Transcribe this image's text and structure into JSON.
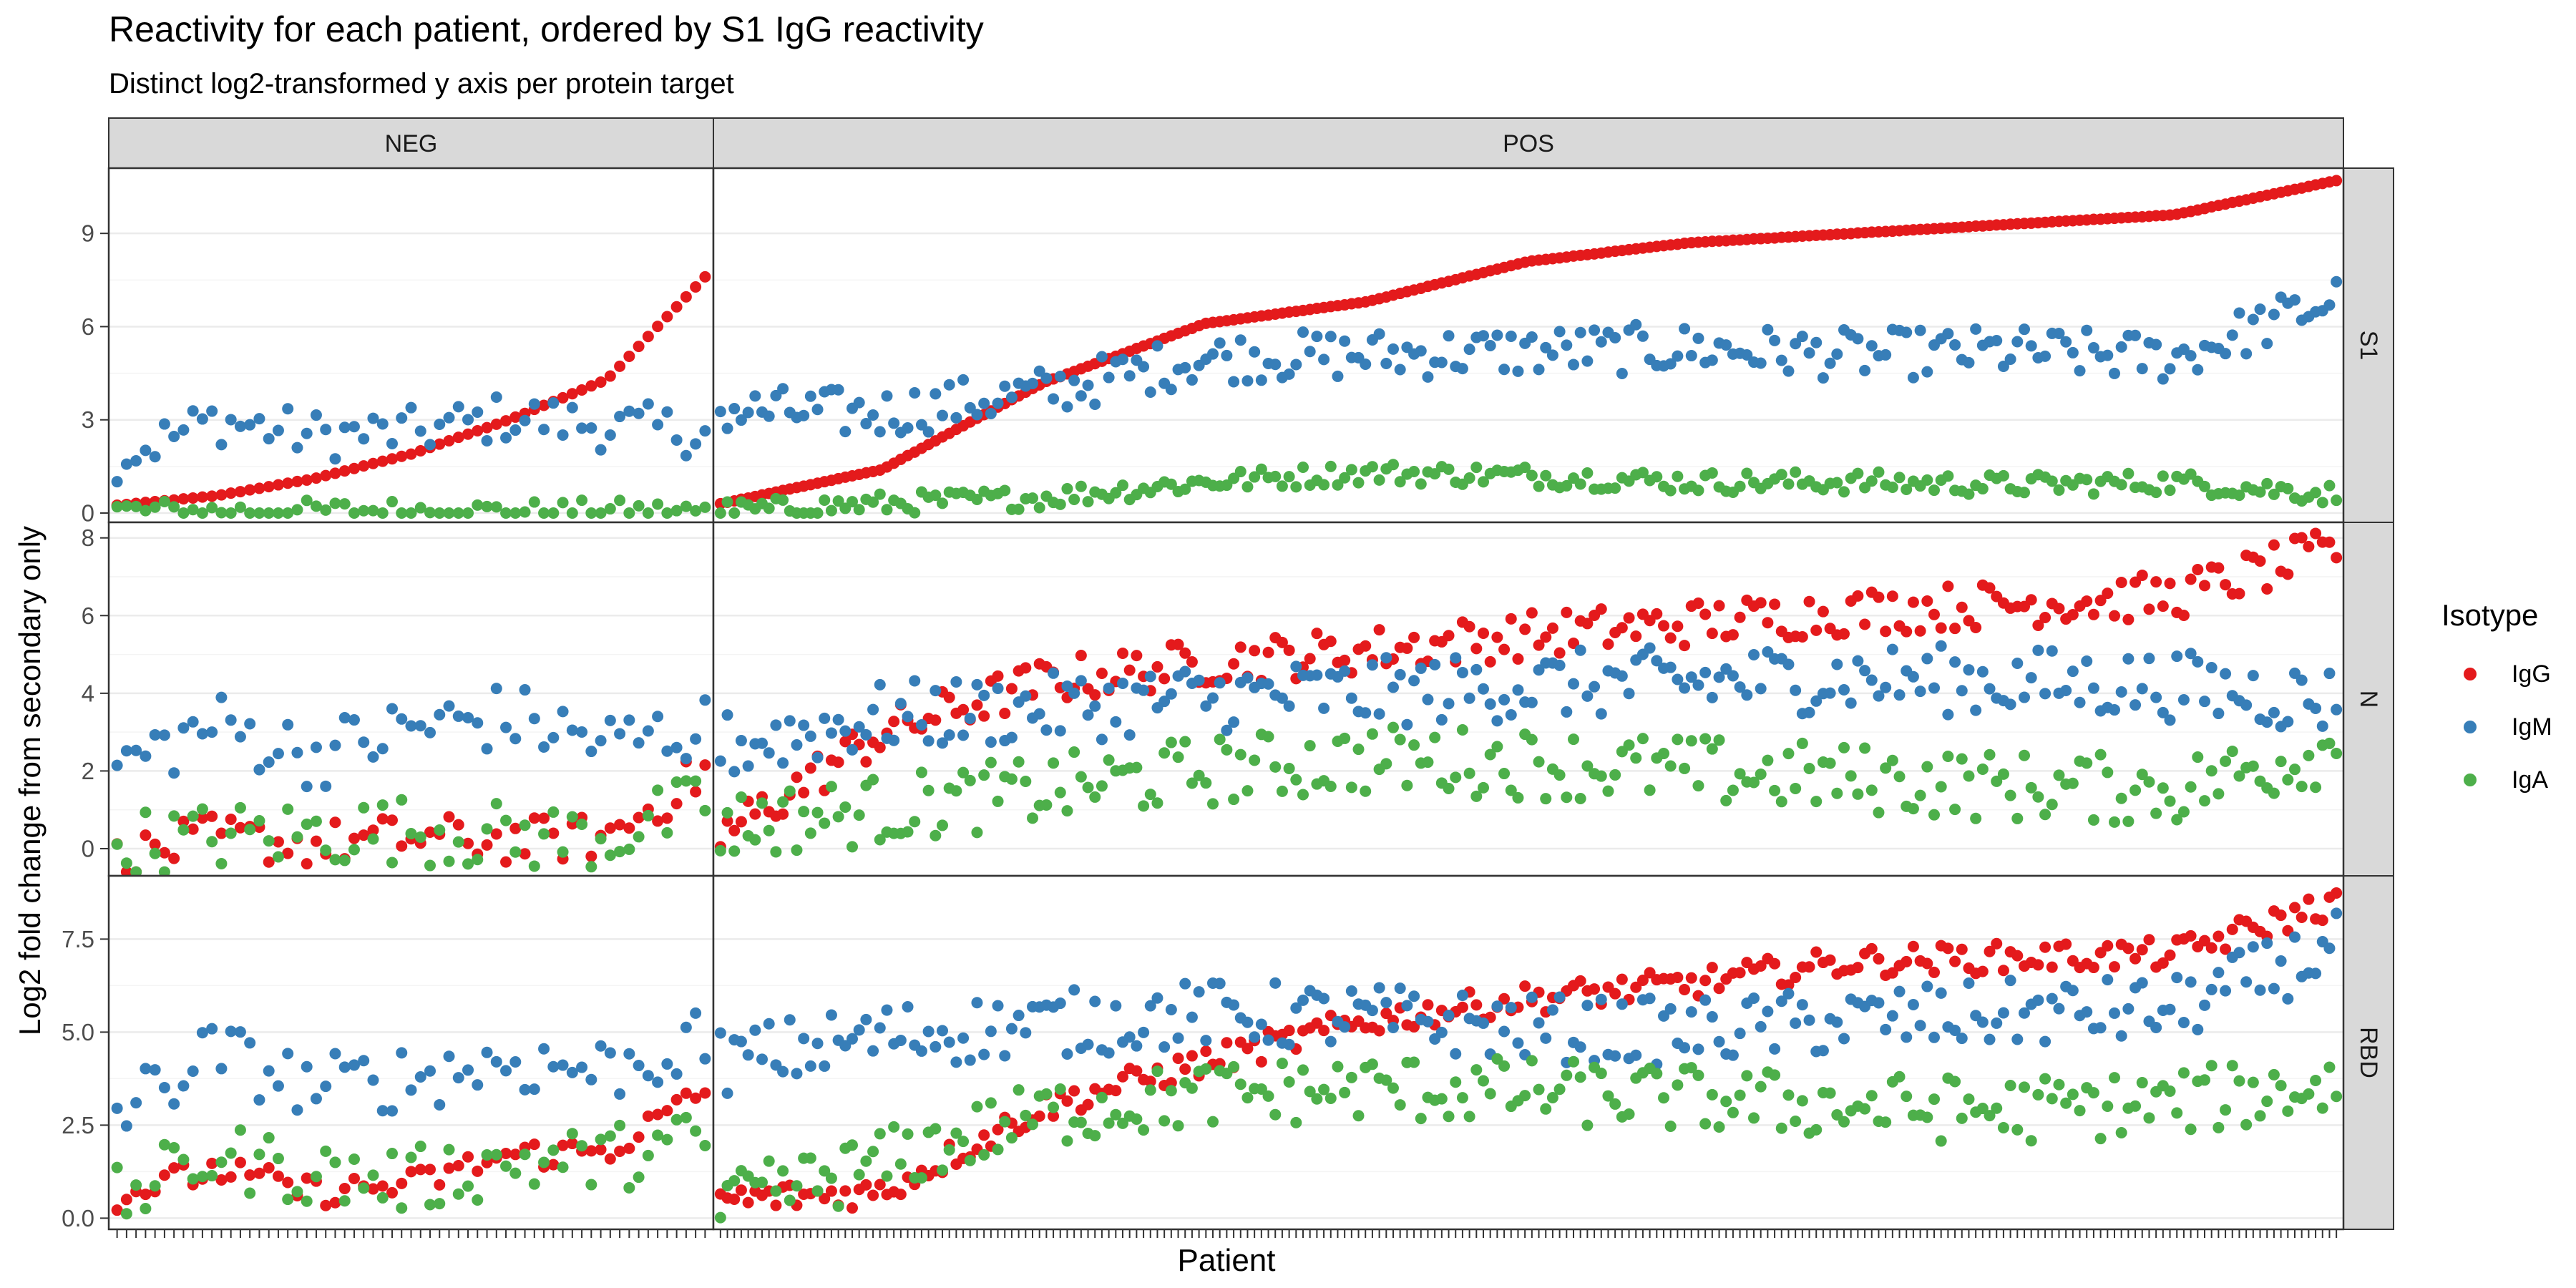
{
  "chart_data": {
    "type": "scatter",
    "title": "Reactivity for each patient, ordered by S1 IgG reactivity",
    "subtitle": "Distinct log2-transformed y axis per protein target",
    "xlabel": "Patient",
    "ylabel": "Log2 fold change from secondary only",
    "legend": {
      "title": "Isotype",
      "position": "right",
      "items": [
        {
          "name": "IgG",
          "color": "#e41a1c"
        },
        {
          "name": "IgM",
          "color": "#377eb8"
        },
        {
          "name": "IgA",
          "color": "#4daf4a"
        }
      ]
    },
    "columns": [
      {
        "label": "NEG",
        "n_patients": 63
      },
      {
        "label": "POS",
        "n_patients": 234
      }
    ],
    "rows": [
      {
        "label": "S1",
        "ylim": [
          -0.3,
          11.1
        ],
        "yticks": [
          0,
          3,
          6,
          9
        ],
        "ytick_labels": [
          "0",
          "3",
          "6",
          "9"
        ]
      },
      {
        "label": "N",
        "ylim": [
          -0.7,
          8.4
        ],
        "yticks": [
          0,
          2,
          4,
          6,
          8
        ],
        "ytick_labels": [
          "0",
          "2",
          "4",
          "6",
          "8"
        ]
      },
      {
        "label": "RBD",
        "ylim": [
          -0.3,
          9.2
        ],
        "yticks": [
          0,
          2.5,
          5,
          7.5
        ],
        "ytick_labels": [
          "0.0",
          "2.5",
          "5.0",
          "7.5"
        ]
      }
    ],
    "grid": true,
    "series": [
      {
        "name": "IgG",
        "color": "#e41a1c",
        "panels": {
          "NEG": {
            "S1": [
              0.25,
              0.55,
              1.1,
              1.9,
              3.0,
              4.3,
              7.6
            ],
            "N": [
              -0.3,
              0.3,
              0.1,
              0.3,
              0.2,
              0.3,
              2.0
            ],
            "RBD": [
              0.6,
              1.3,
              0.7,
              0.9,
              1.7,
              1.8,
              3.4
            ]
          },
          "POS": {
            "S1": [
              0.3,
              1.4,
              4.2,
              6.1,
              6.8,
              8.1,
              8.7,
              9.0,
              9.3,
              9.6,
              10.7
            ],
            "N": [
              0.3,
              3.0,
              4.3,
              4.8,
              5.1,
              5.5,
              5.8,
              6.1,
              6.3,
              6.5,
              7.7
            ],
            "RBD": [
              0.5,
              0.7,
              3.0,
              4.2,
              5.3,
              5.9,
              6.3,
              6.9,
              7.0,
              7.1,
              8.5
            ]
          }
        }
      },
      {
        "name": "IgM",
        "color": "#377eb8",
        "panels": {
          "NEG": {
            "S1": [
              1.8,
              3.0,
              2.5,
              2.6,
              3.1,
              2.8,
              2.6
            ],
            "N": [
              2.1,
              3.2,
              2.4,
              3.1,
              3.4,
              2.7,
              3.1
            ],
            "RBD": [
              2.8,
              4.5,
              3.5,
              3.8,
              4.2,
              4.0,
              4.7
            ]
          },
          "POS": {
            "S1": [
              3.3,
              3.2,
              3.9,
              5.0,
              5.1,
              5.2,
              5.3,
              5.1,
              5.2,
              5.0,
              6.9
            ],
            "N": [
              2.6,
              3.4,
              3.6,
              3.9,
              4.0,
              4.2,
              4.3,
              4.4,
              4.3,
              4.2,
              3.8
            ],
            "RBD": [
              4.2,
              4.9,
              5.2,
              5.5,
              5.4,
              5.1,
              5.0,
              5.3,
              5.5,
              5.6,
              7.3
            ]
          }
        }
      },
      {
        "name": "IgA",
        "color": "#4daf4a",
        "panels": {
          "NEG": {
            "S1": [
              0.1,
              0.05,
              0.08,
              0.1,
              0.05,
              0.08,
              0.05
            ],
            "N": [
              0.1,
              0.3,
              0.4,
              0.5,
              0.3,
              0.3,
              1.1
            ],
            "RBD": [
              0.5,
              1.7,
              1.2,
              1.0,
              1.5,
              1.6,
              2.1
            ]
          },
          "POS": {
            "S1": [
              0.05,
              0.3,
              0.5,
              1.0,
              1.3,
              1.2,
              1.0,
              1.0,
              0.9,
              1.0,
              0.6
            ],
            "N": [
              0.6,
              1.0,
              1.5,
              2.0,
              2.3,
              2.2,
              2.0,
              1.8,
              1.6,
              1.5,
              2.6
            ],
            "RBD": [
              0.3,
              1.5,
              2.8,
              3.3,
              3.5,
              3.4,
              3.2,
              3.0,
              2.9,
              3.1,
              3.6
            ]
          }
        }
      }
    ]
  }
}
